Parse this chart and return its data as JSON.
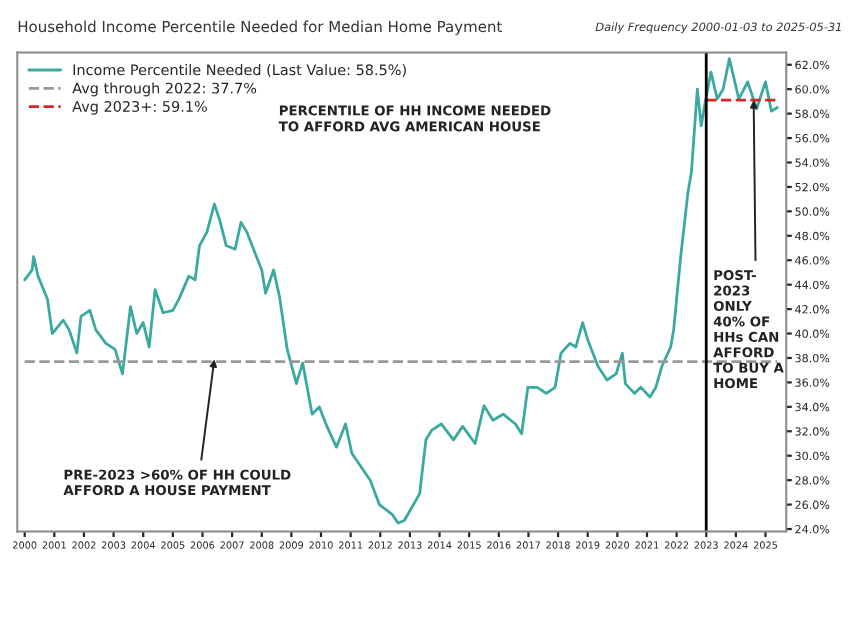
{
  "chart_data": {
    "type": "line",
    "title": "Household Income Percentile Needed for Median Home Payment",
    "subtitle": "Daily Frequency 2000-01-03 to 2025-05-31",
    "series": [
      {
        "name": "Income Percentile Needed (Last Value: 58.5%)",
        "color": "#3aa99f",
        "line_style": "solid",
        "x": [
          2000.0,
          2000.25,
          2000.3,
          2000.45,
          2000.77,
          2000.93,
          2001.3,
          2001.5,
          2001.76,
          2001.9,
          2002.2,
          2002.4,
          2002.74,
          2003.05,
          2003.3,
          2003.57,
          2003.78,
          2004.0,
          2004.2,
          2004.4,
          2004.67,
          2005.0,
          2005.2,
          2005.54,
          2005.75,
          2005.9,
          2006.15,
          2006.4,
          2006.58,
          2006.8,
          2007.1,
          2007.3,
          2007.5,
          2007.82,
          2008.0,
          2008.13,
          2008.4,
          2008.6,
          2008.86,
          2009.17,
          2009.38,
          2009.7,
          2009.94,
          2010.2,
          2010.52,
          2010.83,
          2011.04,
          2011.35,
          2011.66,
          2011.97,
          2012.4,
          2012.6,
          2012.81,
          2013.12,
          2013.33,
          2013.54,
          2013.74,
          2014.06,
          2014.47,
          2014.78,
          2015.2,
          2015.5,
          2015.8,
          2016.15,
          2016.56,
          2016.77,
          2016.98,
          2017.3,
          2017.6,
          2017.9,
          2018.1,
          2018.4,
          2018.6,
          2018.83,
          2019.0,
          2019.35,
          2019.65,
          2019.96,
          2020.17,
          2020.27,
          2020.58,
          2020.79,
          2021.1,
          2021.3,
          2021.5,
          2021.8,
          2021.9,
          2022.13,
          2022.38,
          2022.5,
          2022.7,
          2022.83,
          2022.95,
          2023.16,
          2023.37,
          2023.57,
          2023.78,
          2024.1,
          2024.4,
          2024.7,
          2025.0,
          2025.2,
          2025.4
        ],
        "values": [
          44.4,
          45.2,
          46.3,
          44.7,
          42.8,
          40.0,
          41.1,
          40.3,
          38.4,
          41.4,
          41.9,
          40.3,
          39.2,
          38.7,
          36.7,
          42.2,
          40.0,
          40.9,
          38.9,
          43.6,
          41.7,
          41.9,
          42.8,
          44.7,
          44.4,
          47.2,
          48.3,
          50.6,
          49.3,
          47.2,
          46.9,
          49.1,
          48.3,
          46.3,
          45.2,
          43.3,
          45.2,
          43.0,
          38.7,
          35.9,
          37.6,
          33.4,
          34.0,
          32.4,
          30.7,
          32.6,
          30.2,
          29.1,
          28.0,
          26.0,
          25.2,
          24.5,
          24.7,
          26.0,
          26.9,
          31.3,
          32.1,
          32.6,
          31.3,
          32.4,
          31.0,
          34.1,
          32.9,
          33.4,
          32.6,
          31.8,
          35.6,
          35.6,
          35.1,
          35.6,
          38.4,
          39.2,
          38.9,
          40.9,
          39.5,
          37.3,
          36.2,
          36.7,
          38.4,
          35.9,
          35.1,
          35.6,
          34.8,
          35.6,
          37.3,
          38.9,
          40.3,
          46.1,
          51.5,
          53.2,
          60.0,
          57.0,
          58.7,
          61.4,
          59.2,
          60.0,
          62.5,
          59.2,
          60.6,
          58.4,
          60.6,
          58.2,
          58.5
        ]
      },
      {
        "name": "Avg through 2022: 37.7%",
        "color": "#999999",
        "line_style": "dashed",
        "x": [
          2000.0,
          2025.4
        ],
        "values": [
          37.7,
          37.7
        ]
      },
      {
        "name": "Avg 2023+: 59.1%",
        "color": "#d62728",
        "line_style": "dashed",
        "x": [
          2023.0,
          2025.4
        ],
        "values": [
          59.1,
          59.1
        ]
      }
    ],
    "xlim": [
      1999.75,
      2025.7
    ],
    "xticks": [
      2000,
      2001,
      2002,
      2003,
      2004,
      2005,
      2006,
      2007,
      2008,
      2009,
      2010,
      2011,
      2012,
      2013,
      2014,
      2015,
      2016,
      2017,
      2018,
      2019,
      2020,
      2021,
      2022,
      2023,
      2024,
      2025
    ],
    "ylim": [
      23.8,
      63
    ],
    "yticks": [
      {
        "value": 24,
        "label": "24.0%"
      },
      {
        "value": 26,
        "label": "26.0%"
      },
      {
        "value": 28,
        "label": "28.0%"
      },
      {
        "value": 30,
        "label": "30.0%"
      },
      {
        "value": 32,
        "label": "32.0%"
      },
      {
        "value": 34,
        "label": "34.0%"
      },
      {
        "value": 36,
        "label": "36.0%"
      },
      {
        "value": 38,
        "label": "38.0%"
      },
      {
        "value": 40,
        "label": "40.0%"
      },
      {
        "value": 42,
        "label": "42.0%"
      },
      {
        "value": 44,
        "label": "44.0%"
      },
      {
        "value": 46,
        "label": "46.0%"
      },
      {
        "value": 48,
        "label": "48.0%"
      },
      {
        "value": 50,
        "label": "50.0%"
      },
      {
        "value": 52,
        "label": "52.0%"
      },
      {
        "value": 54,
        "label": "54.0%"
      },
      {
        "value": 56,
        "label": "56.0%"
      },
      {
        "value": 58,
        "label": "58.0%"
      },
      {
        "value": 60,
        "label": "60.0%"
      },
      {
        "value": 62,
        "label": "62.0%"
      }
    ],
    "ref_lines": [
      {
        "axis": "x",
        "value": 2023,
        "color": "#000000",
        "line_style": "solid"
      }
    ],
    "annotations": [
      "PERCENTILE OF HH INCOME NEEDED\nTO AFFORD AVG AMERICAN HOUSE",
      {
        "text": "PRE-2023 >60% OF HH COULD\nAFFORD A HOUSE PAYMENT",
        "x": 2006.4,
        "y": 37.9
      },
      {
        "text": "POST-\n2023\nONLY\n40% OF\nHHs CAN\nAFFORD\nTO BUY A\nHOME",
        "x": 2024.6,
        "y": 59.1
      }
    ],
    "legend": "top left",
    "grid": false,
    "marker": "none"
  }
}
